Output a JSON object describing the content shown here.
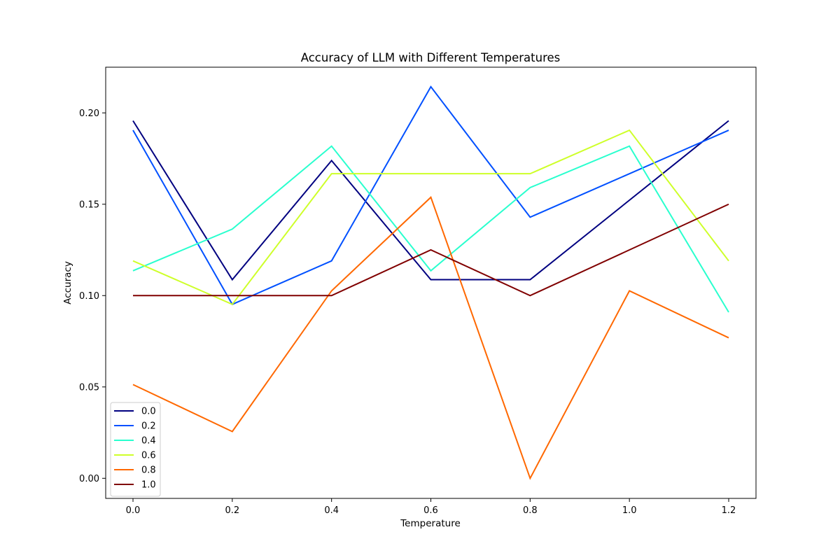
{
  "chart_data": {
    "type": "line",
    "title": "Accuracy of LLM with Different Temperatures",
    "xlabel": "Temperature",
    "ylabel": "Accuracy",
    "x": [
      0.0,
      0.2,
      0.4,
      0.6,
      0.8,
      1.0,
      1.2
    ],
    "xlim": [
      -0.055,
      1.255
    ],
    "ylim": [
      -0.011,
      0.225
    ],
    "xticks": [
      0.0,
      0.2,
      0.4,
      0.6,
      0.8,
      1.0,
      1.2
    ],
    "xtick_labels": [
      "0.0",
      "0.2",
      "0.4",
      "0.6",
      "0.8",
      "1.0",
      "1.2"
    ],
    "yticks": [
      0.0,
      0.05,
      0.1,
      0.15,
      0.2
    ],
    "ytick_labels": [
      "0.00",
      "0.05",
      "0.10",
      "0.15",
      "0.20"
    ],
    "grid": false,
    "legend_position": "lower-left",
    "series": [
      {
        "name": "0.0",
        "color": "#000080",
        "values": [
          0.1957,
          0.1087,
          0.1739,
          0.1087,
          0.1087,
          0.1522,
          0.1957
        ]
      },
      {
        "name": "0.2",
        "color": "#0050ff",
        "values": [
          0.1905,
          0.0952,
          0.119,
          0.2143,
          0.1429,
          0.1667,
          0.1905
        ]
      },
      {
        "name": "0.4",
        "color": "#29ffce",
        "values": [
          0.1136,
          0.1364,
          0.1818,
          0.1136,
          0.1591,
          0.1818,
          0.0909
        ]
      },
      {
        "name": "0.6",
        "color": "#ceff29",
        "values": [
          0.119,
          0.0952,
          0.1667,
          0.1667,
          0.1667,
          0.1905,
          0.119
        ]
      },
      {
        "name": "0.8",
        "color": "#ff6800",
        "values": [
          0.0513,
          0.0256,
          0.1026,
          0.1538,
          0.0,
          0.1026,
          0.0769
        ]
      },
      {
        "name": "1.0",
        "color": "#800000",
        "values": [
          0.1,
          0.1,
          0.1,
          0.125,
          0.1,
          0.125,
          0.15
        ]
      }
    ]
  }
}
